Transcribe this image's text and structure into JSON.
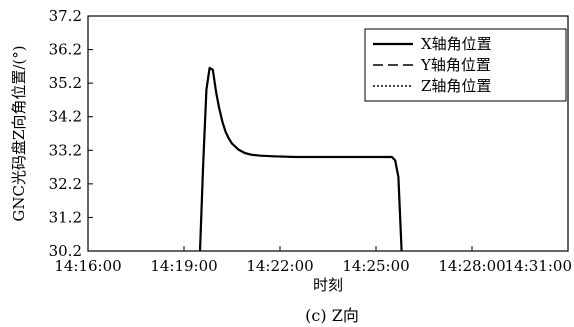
{
  "chart_data": {
    "type": "line",
    "caption": "(c) Z向",
    "xlabel": "时刻",
    "ylabel": "GNC光码盘Z向角位置/(°)",
    "x_ticks": [
      "14:16:00",
      "14:19:00",
      "14:22:00",
      "14:25:00",
      "14:28:00",
      "14:31:00"
    ],
    "y_ticks": [
      "30.2",
      "31.2",
      "32.2",
      "33.2",
      "34.2",
      "35.2",
      "36.2",
      "37.2"
    ],
    "xlim": [
      "14:16:00",
      "14:31:00"
    ],
    "ylim": [
      30.2,
      37.2
    ],
    "grid": false,
    "legend_position": "top-right",
    "series": [
      {
        "name": "X轴角位置",
        "style": "solid",
        "color": "#000000",
        "x": [
          "14:19:30",
          "14:19:36",
          "14:19:42",
          "14:19:48",
          "14:19:54",
          "14:20:00",
          "14:20:06",
          "14:20:12",
          "14:20:18",
          "14:20:24",
          "14:20:30",
          "14:20:42",
          "14:20:54",
          "14:21:06",
          "14:21:24",
          "14:21:48",
          "14:22:30",
          "14:23:30",
          "14:24:30",
          "14:25:30",
          "14:25:36",
          "14:25:42",
          "14:25:48"
        ],
        "values": [
          30.2,
          32.8,
          35.0,
          35.65,
          35.6,
          34.95,
          34.45,
          34.05,
          33.75,
          33.55,
          33.4,
          33.22,
          33.12,
          33.07,
          33.04,
          33.02,
          33.0,
          33.0,
          33.0,
          33.0,
          32.9,
          32.4,
          30.2
        ]
      },
      {
        "name": "Y轴角位置",
        "style": "dashed",
        "color": "#000000",
        "x": [
          "14:19:30",
          "14:19:36",
          "14:19:42",
          "14:19:48",
          "14:19:54",
          "14:20:00",
          "14:20:06",
          "14:20:12",
          "14:20:18",
          "14:20:24",
          "14:20:30",
          "14:20:42",
          "14:20:54",
          "14:21:06",
          "14:21:24",
          "14:21:48",
          "14:22:30",
          "14:23:30",
          "14:24:30",
          "14:25:30",
          "14:25:36",
          "14:25:42",
          "14:25:48"
        ],
        "values": [
          30.2,
          32.8,
          35.0,
          35.65,
          35.6,
          34.95,
          34.45,
          34.05,
          33.75,
          33.55,
          33.4,
          33.22,
          33.12,
          33.07,
          33.04,
          33.02,
          33.0,
          33.0,
          33.0,
          33.0,
          32.9,
          32.4,
          30.2
        ]
      },
      {
        "name": "Z轴角位置",
        "style": "dotted",
        "color": "#000000",
        "x": [
          "14:19:30",
          "14:19:36",
          "14:19:42",
          "14:19:48",
          "14:19:54",
          "14:20:00",
          "14:20:06",
          "14:20:12",
          "14:20:18",
          "14:20:24",
          "14:20:30",
          "14:20:42",
          "14:20:54",
          "14:21:06",
          "14:21:24",
          "14:21:48",
          "14:22:30",
          "14:23:30",
          "14:24:30",
          "14:25:30",
          "14:25:36",
          "14:25:42",
          "14:25:48"
        ],
        "values": [
          30.2,
          32.8,
          35.0,
          35.65,
          35.6,
          34.95,
          34.45,
          34.05,
          33.75,
          33.55,
          33.4,
          33.22,
          33.12,
          33.07,
          33.04,
          33.02,
          33.0,
          33.0,
          33.0,
          33.0,
          32.9,
          32.4,
          30.2
        ]
      }
    ]
  }
}
